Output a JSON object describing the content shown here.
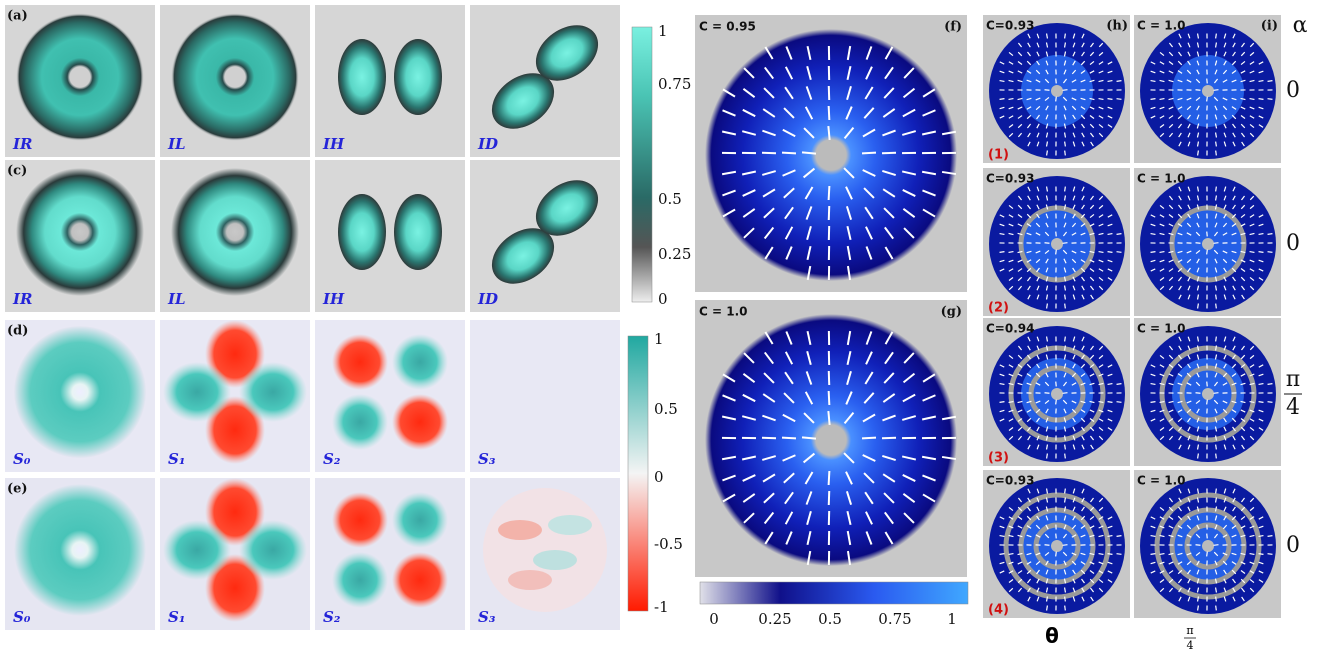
{
  "intensity_measured": {
    "label": "(a)",
    "captions": [
      "IR",
      "IL",
      "IH",
      "ID"
    ]
  },
  "intensity_simulated": {
    "label": "(c)",
    "captions": [
      "IR",
      "IL",
      "IH",
      "ID"
    ]
  },
  "stokes_simulated": {
    "label": "(d)",
    "captions": [
      "S₀",
      "S₁",
      "S₂",
      "S₃"
    ]
  },
  "stokes_measured": {
    "label": "(e)",
    "captions": [
      "S₀",
      "S₁",
      "S₂",
      "S₃"
    ]
  },
  "colorbar_intensity": {
    "ticks": [
      "1",
      "0.75",
      "0.5",
      "0.25",
      "0"
    ]
  },
  "colorbar_stokes": {
    "ticks": [
      "1",
      "0.5",
      "0",
      "-0.5",
      "-1"
    ]
  },
  "panel_f": {
    "label": "(f)",
    "concurrence": "C = 0.95"
  },
  "panel_g": {
    "label": "(g)",
    "concurrence": "C = 1.0"
  },
  "colorbar_polarization": {
    "ticks": [
      "0",
      "0.25",
      "0.5",
      "0.75",
      "1"
    ]
  },
  "grid": {
    "column_labels": [
      "(h)",
      "(i)"
    ],
    "alpha_header": "α",
    "rows": [
      {
        "label": "(1)",
        "measured_c": "C=0.93",
        "simulated_c": "C = 1.0",
        "alpha": {
          "text": "0"
        }
      },
      {
        "label": "(2)",
        "measured_c": "C=0.93",
        "simulated_c": "C = 1.0",
        "alpha": {
          "text": "0"
        }
      },
      {
        "label": "(3)",
        "measured_c": "C=0.94",
        "simulated_c": "C = 1.0",
        "alpha": {
          "numerator": "π",
          "denominator": "4"
        }
      },
      {
        "label": "(4)",
        "measured_c": "C=0.93",
        "simulated_c": "C = 1.0",
        "alpha": {
          "text": "0"
        }
      }
    ],
    "footer": {
      "theta": "θ",
      "numerator": "π",
      "denominator": "4"
    }
  }
}
